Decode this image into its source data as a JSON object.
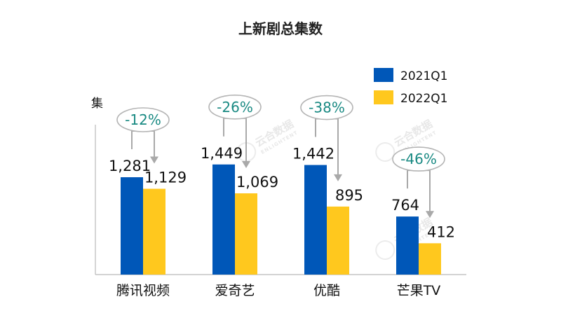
{
  "chart_data": {
    "type": "bar",
    "title": "上新剧总集数",
    "ylabel": "集",
    "xlabel": "",
    "categories": [
      "腾讯视频",
      "爱奇艺",
      "优酷",
      "芒果TV"
    ],
    "series": [
      {
        "name": "2021Q1",
        "color": "#0057b8",
        "values": [
          1281,
          1449,
          1442,
          764
        ]
      },
      {
        "name": "2022Q1",
        "color": "#ffc81e",
        "values": [
          1129,
          1069,
          895,
          412
        ]
      }
    ],
    "value_labels": {
      "2021Q1": [
        "1,281",
        "1,449",
        "1,442",
        "764"
      ],
      "2022Q1": [
        "1,129",
        "1,069",
        "895",
        "412"
      ]
    },
    "changes": [
      "-12%",
      "-26%",
      "-38%",
      "-46%"
    ],
    "ylim": [
      0,
      1900
    ],
    "grid": false,
    "legend": "top-right"
  },
  "watermark": {
    "name": "云合数据",
    "sub": "ENLIGHTENT"
  }
}
